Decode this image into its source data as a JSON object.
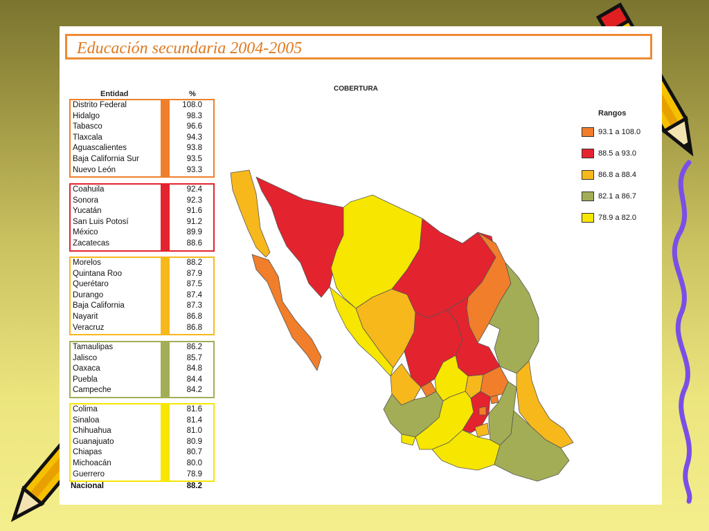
{
  "slide": {
    "title": "Educación secundaria 2004-2005"
  },
  "table": {
    "col_entity": "Entidad",
    "col_percent": "%",
    "groups": [
      {
        "color": "#f07e2a",
        "rows": [
          {
            "name": "Distrito Federal",
            "value": "108.0"
          },
          {
            "name": "Hidalgo",
            "value": "98.3"
          },
          {
            "name": "Tabasco",
            "value": "96.6"
          },
          {
            "name": "Tlaxcala",
            "value": "94.3"
          },
          {
            "name": "Aguascalientes",
            "value": "93.8"
          },
          {
            "name": "Baja California Sur",
            "value": "93.5"
          },
          {
            "name": "Nuevo León",
            "value": "93.3"
          }
        ]
      },
      {
        "color": "#e3232e",
        "rows": [
          {
            "name": "Coahuila",
            "value": "92.4"
          },
          {
            "name": "Sonora",
            "value": "92.3"
          },
          {
            "name": "Yucatán",
            "value": "91.6"
          },
          {
            "name": "San Luis Potosí",
            "value": "91.2"
          },
          {
            "name": "México",
            "value": "89.9"
          },
          {
            "name": "Zacatecas",
            "value": "88.6"
          }
        ]
      },
      {
        "color": "#f7b81c",
        "rows": [
          {
            "name": "Morelos",
            "value": "88.2"
          },
          {
            "name": "Quintana Roo",
            "value": "87.9"
          },
          {
            "name": "Querétaro",
            "value": "87.5"
          },
          {
            "name": "Durango",
            "value": "87.4"
          },
          {
            "name": "Baja California",
            "value": "87.3"
          },
          {
            "name": "Nayarit",
            "value": "86.8"
          },
          {
            "name": "Veracruz",
            "value": "86.8"
          }
        ]
      },
      {
        "color": "#a3ad55",
        "rows": [
          {
            "name": "Tamaulipas",
            "value": "86.2"
          },
          {
            "name": "Jalisco",
            "value": "85.7"
          },
          {
            "name": "Oaxaca",
            "value": "84.8"
          },
          {
            "name": "Puebla",
            "value": "84.4"
          },
          {
            "name": "Campeche",
            "value": "84.2"
          }
        ]
      },
      {
        "color": "#f6e600",
        "rows": [
          {
            "name": "Colima",
            "value": "81.6"
          },
          {
            "name": "Sinaloa",
            "value": "81.4"
          },
          {
            "name": "Chihuahua",
            "value": "81.0"
          },
          {
            "name": "Guanajuato",
            "value": "80.9"
          },
          {
            "name": "Chiapas",
            "value": "80.7"
          },
          {
            "name": "Michoacán",
            "value": "80.0"
          },
          {
            "name": "Guerrero",
            "value": "78.9"
          }
        ]
      }
    ],
    "national": {
      "name": "Nacional",
      "value": "88.2"
    }
  },
  "map": {
    "title": "COBERTURA",
    "legend_title": "Rangos",
    "legend": [
      {
        "label": "93.1 a 108.0",
        "color": "#f07e2a"
      },
      {
        "label": "88.5 a 93.0",
        "color": "#e3232e"
      },
      {
        "label": "86.8 a 88.4",
        "color": "#f7b81c"
      },
      {
        "label": "82.1 a 86.7",
        "color": "#a3ad55"
      },
      {
        "label": "78.9 a 82.0",
        "color": "#f6e600"
      }
    ]
  }
}
